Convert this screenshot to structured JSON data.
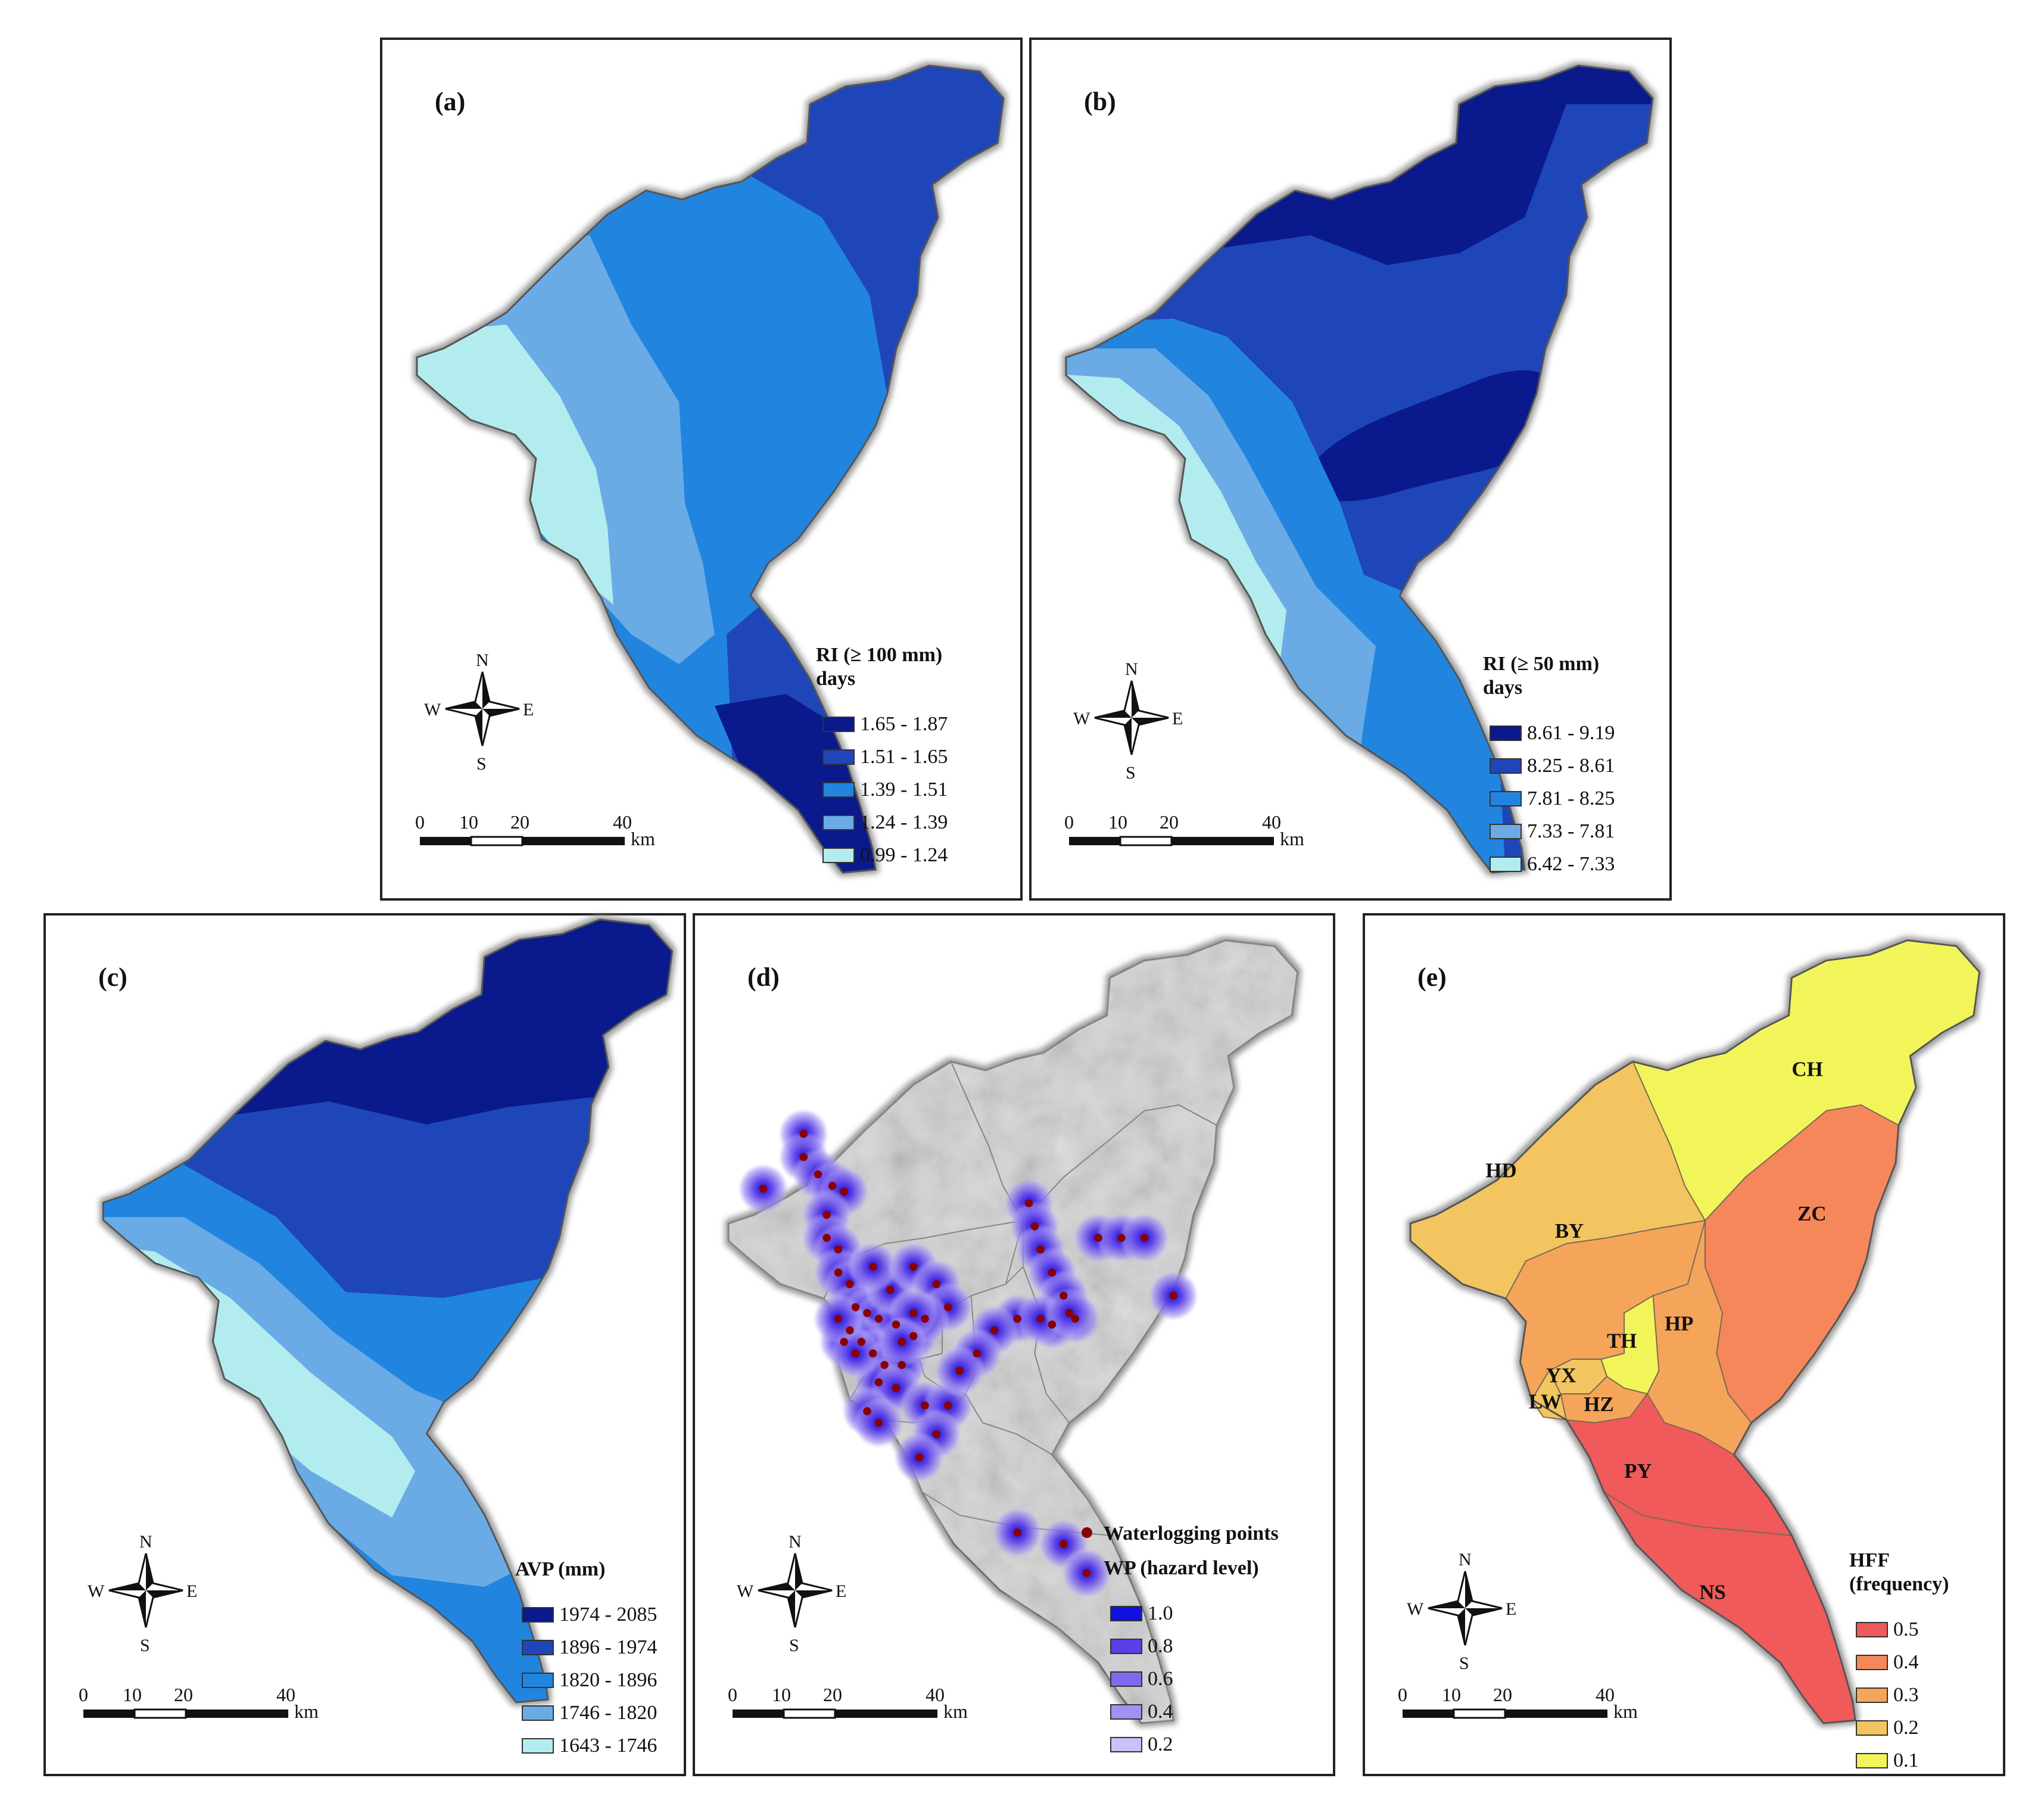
{
  "panels": {
    "a": {
      "tag": "(a)",
      "legend_title_1": "RI (≥ 100 mm)",
      "legend_title_2": "days",
      "classes": [
        {
          "label": "1.65 - 1.87",
          "color": "#0a1a8c"
        },
        {
          "label": "1.51 - 1.65",
          "color": "#1f46b8"
        },
        {
          "label": "1.39 - 1.51",
          "color": "#2185e0"
        },
        {
          "label": "1.24 - 1.39",
          "color": "#6aabe6"
        },
        {
          "label": "0.99 - 1.24",
          "color": "#b3ecee"
        }
      ]
    },
    "b": {
      "tag": "(b)",
      "legend_title_1": "RI (≥ 50 mm)",
      "legend_title_2": "days",
      "classes": [
        {
          "label": "8.61 - 9.19",
          "color": "#0a1a8c"
        },
        {
          "label": "8.25 - 8.61",
          "color": "#1f46b8"
        },
        {
          "label": "7.81 - 8.25",
          "color": "#2185e0"
        },
        {
          "label": "7.33 - 7.81",
          "color": "#6aabe6"
        },
        {
          "label": "6.42 - 7.33",
          "color": "#b3ecee"
        }
      ]
    },
    "c": {
      "tag": "(c)",
      "legend_title_1": "AVP (mm)",
      "classes": [
        {
          "label": "1974 - 2085",
          "color": "#0a1a8c"
        },
        {
          "label": "1896 - 1974",
          "color": "#1f46b8"
        },
        {
          "label": "1820 - 1896",
          "color": "#2185e0"
        },
        {
          "label": "1746 - 1820",
          "color": "#6aabe6"
        },
        {
          "label": "1643 - 1746",
          "color": "#b3ecee"
        }
      ]
    },
    "d": {
      "tag": "(d)",
      "points_label": "Waterlogging points",
      "legend_title_1": "WP (hazard level)",
      "point_color": "#8b0000",
      "classes": [
        {
          "label": "1.0",
          "color": "#1010e0"
        },
        {
          "label": "0.8",
          "color": "#5a3ee6"
        },
        {
          "label": "0.6",
          "color": "#7e6aee"
        },
        {
          "label": "0.4",
          "color": "#a291f2"
        },
        {
          "label": "0.2",
          "color": "#c9c1f7"
        }
      ]
    },
    "e": {
      "tag": "(e)",
      "legend_title_1": "HFF",
      "legend_title_2": "(frequency)",
      "classes": [
        {
          "label": "0.5",
          "color": "#f05a5a"
        },
        {
          "label": "0.4",
          "color": "#f5875a"
        },
        {
          "label": "0.3",
          "color": "#f5a55a"
        },
        {
          "label": "0.2",
          "color": "#f2c560"
        },
        {
          "label": "0.1",
          "color": "#f2f55a"
        }
      ],
      "districts": [
        "CH",
        "HD",
        "ZC",
        "BY",
        "TH",
        "HP",
        "YX",
        "LW",
        "HZ",
        "PY",
        "NS"
      ]
    }
  },
  "compass": {
    "n": "N",
    "s": "S",
    "e": "E",
    "w": "W"
  },
  "scalebar": {
    "ticks": [
      "0",
      "10",
      "20",
      "40"
    ],
    "unit": "km"
  }
}
